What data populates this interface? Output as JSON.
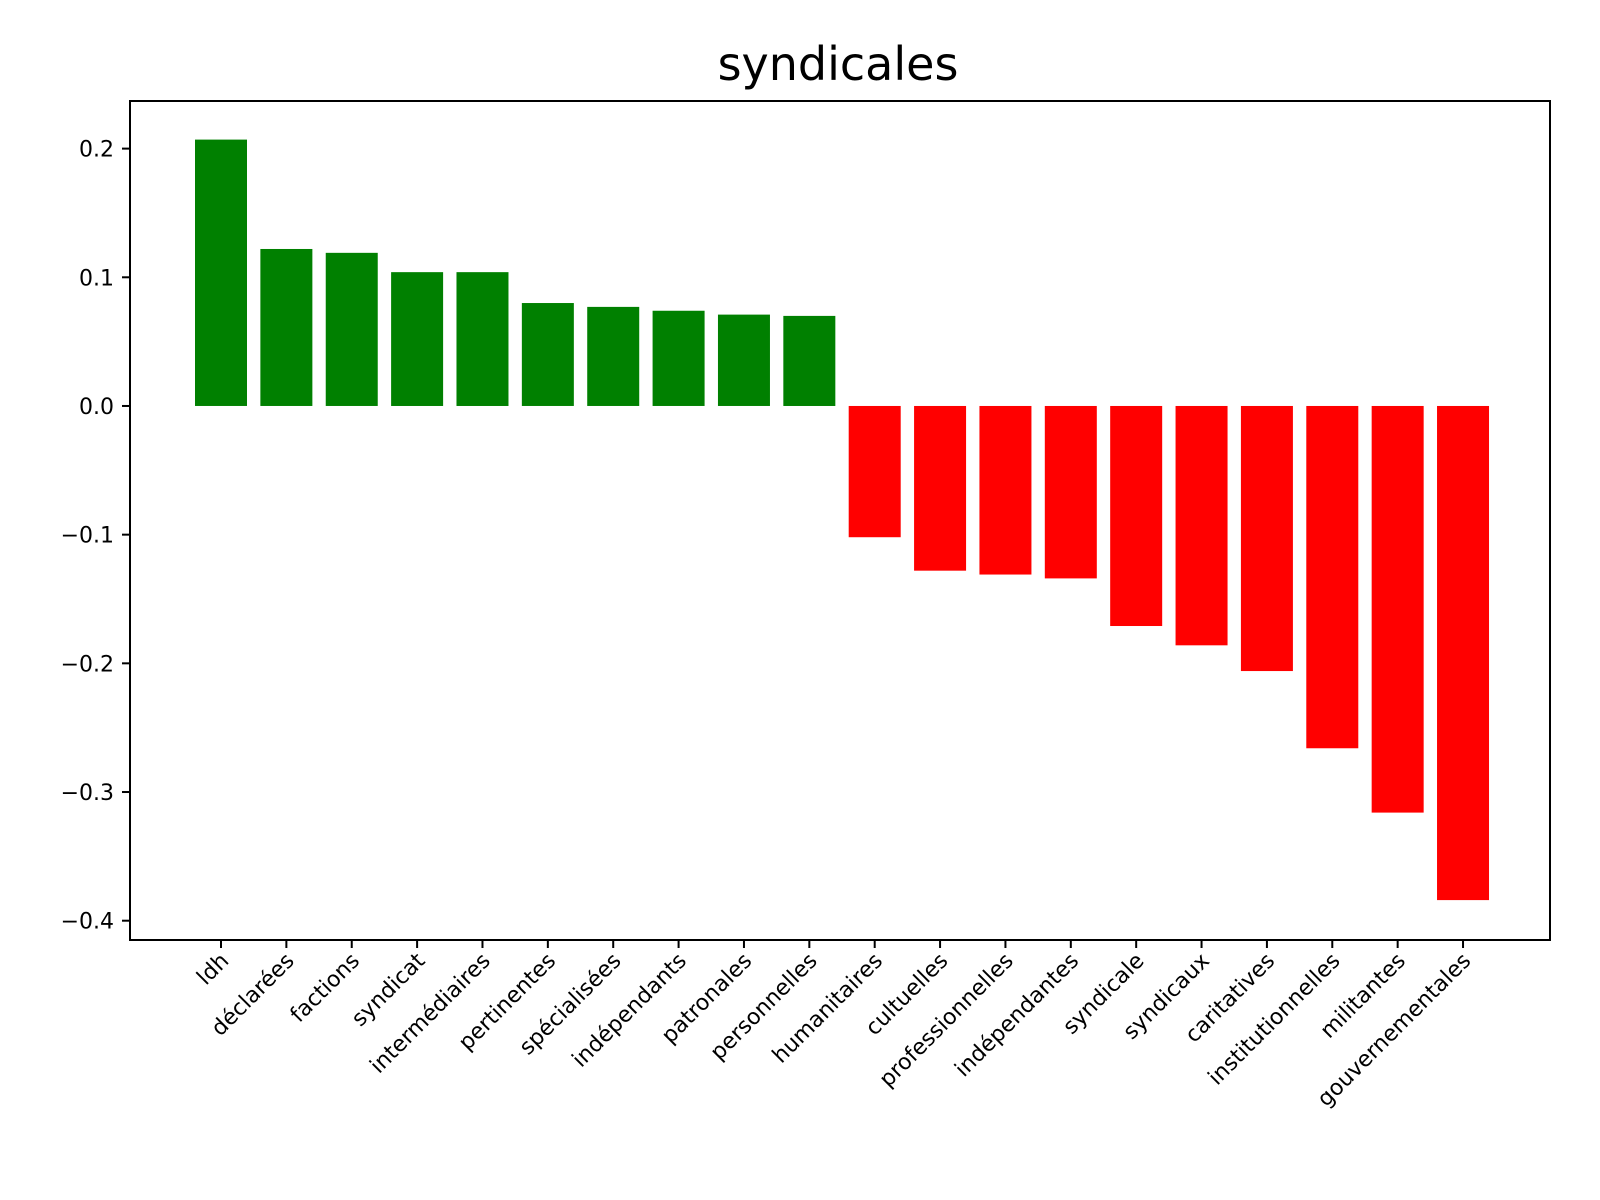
{
  "chart_data": {
    "type": "bar",
    "title": "syndicales",
    "xlabel": "",
    "ylabel": "",
    "ylim": [
      -0.415,
      0.237
    ],
    "yticks": [
      0.2,
      0.1,
      0.0,
      -0.1,
      -0.2,
      -0.3,
      -0.4
    ],
    "ytick_labels": [
      "0.2",
      "0.1",
      "0.0",
      "−0.1",
      "−0.2",
      "−0.3",
      "−0.4"
    ],
    "categories": [
      "ldh",
      "déclarées",
      "factions",
      "syndicat",
      "intermédiaires",
      "pertinentes",
      "spécialisées",
      "indépendants",
      "patronales",
      "personnelles",
      "humanitaires",
      "cultuelles",
      "professionnelles",
      "indépendantes",
      "syndicale",
      "syndicaux",
      "caritatives",
      "institutionnelles",
      "militantes",
      "gouvernementales"
    ],
    "values": [
      0.207,
      0.122,
      0.119,
      0.104,
      0.104,
      0.08,
      0.077,
      0.074,
      0.071,
      0.07,
      -0.102,
      -0.128,
      -0.131,
      -0.134,
      -0.171,
      -0.186,
      -0.206,
      -0.266,
      -0.316,
      -0.384
    ],
    "colors": {
      "positive": "#008000",
      "negative": "#ff0000",
      "axis": "#000000"
    },
    "grid": false,
    "legend": "none"
  }
}
